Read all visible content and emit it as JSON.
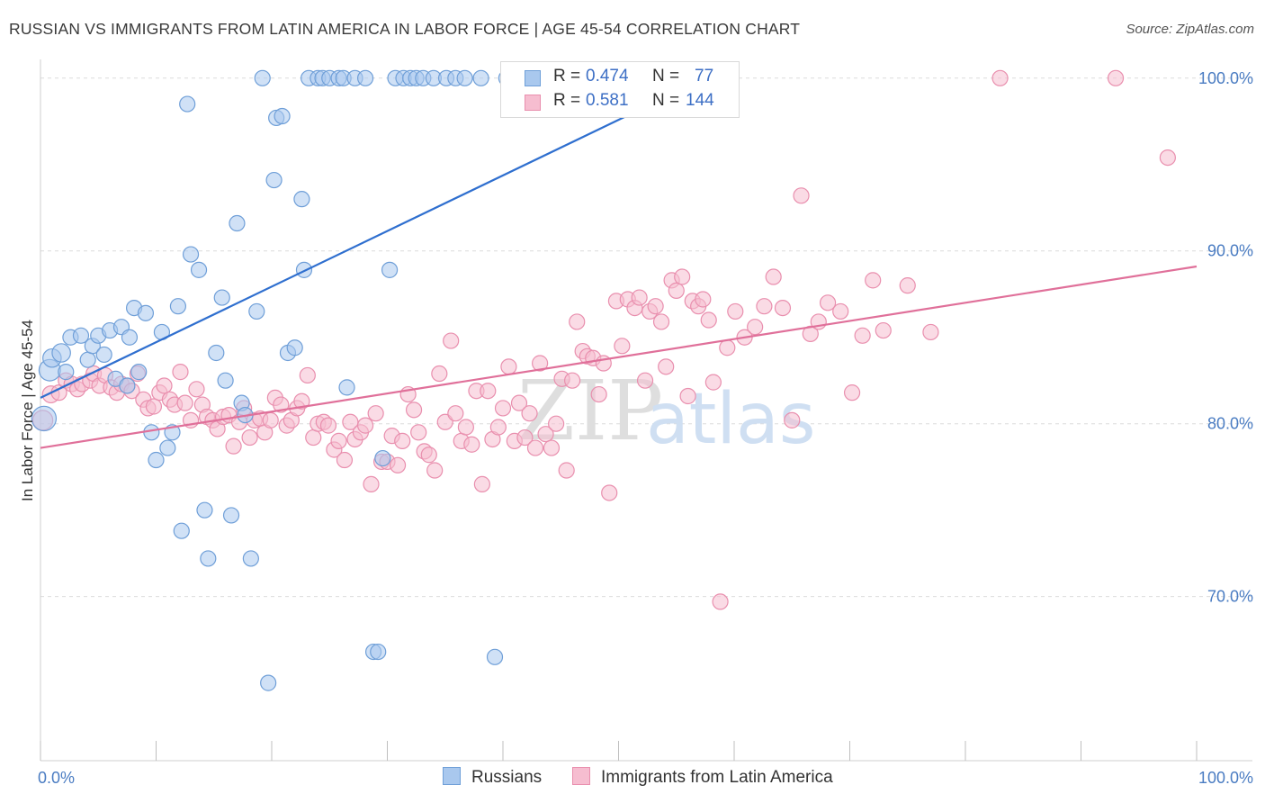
{
  "title": "RUSSIAN VS IMMIGRANTS FROM LATIN AMERICA IN LABOR FORCE | AGE 45-54 CORRELATION CHART",
  "source": "Source: ZipAtlas.com",
  "watermark": {
    "zip": "ZIP",
    "atlas": "atlas"
  },
  "colors": {
    "russians_fill": "#a9c8ee",
    "russians_stroke": "#6f9fd8",
    "russians_line": "#2f6fcf",
    "latin_fill": "#f6bdd0",
    "latin_stroke": "#e98fae",
    "latin_line": "#e0709a",
    "tick_text": "#4a7cc2",
    "grid": "#dcdcdc"
  },
  "legend": {
    "r_label": "R =",
    "n_label": "N =",
    "russians": {
      "r": "0.474",
      "n": "77"
    },
    "latin": {
      "r": "0.581",
      "n": "144"
    }
  },
  "bottom_legend": {
    "russians": "Russians",
    "latin": "Immigrants from Latin America"
  },
  "chart_data": {
    "type": "scatter",
    "ylabel": "In Labor Force | Age 45-54",
    "xlim": [
      0,
      100
    ],
    "ylim": [
      60.5,
      101.5
    ],
    "x_ticks": [
      {
        "value": 0,
        "label": "0.0%"
      },
      {
        "value": 100,
        "label": "100.0%"
      }
    ],
    "x_minor_ticks": [
      0,
      10,
      20,
      30,
      40,
      50,
      60,
      70,
      80,
      90,
      100
    ],
    "y_ticks": [
      {
        "value": 70,
        "label": "70.0%"
      },
      {
        "value": 80,
        "label": "80.0%"
      },
      {
        "value": 90,
        "label": "90.0%"
      },
      {
        "value": 100,
        "label": "100.0%"
      }
    ],
    "grid": true,
    "legend_position": "top-center",
    "series": [
      {
        "name": "Russians",
        "r": 0.474,
        "n": 77,
        "trend": [
          [
            0,
            81.5
          ],
          [
            57.5,
            100.0
          ]
        ],
        "points": [
          [
            0.3,
            80.3,
            1.6
          ],
          [
            0.8,
            83.1,
            1.4
          ],
          [
            1.0,
            83.8,
            1.2
          ],
          [
            1.8,
            84.1,
            1.2
          ],
          [
            2.2,
            83.0,
            1.0
          ],
          [
            2.6,
            85.0,
            1.0
          ],
          [
            3.5,
            85.1,
            1.0
          ],
          [
            4.1,
            83.7,
            1.0
          ],
          [
            4.5,
            84.5,
            1.0
          ],
          [
            5.0,
            85.1,
            1.0
          ],
          [
            5.5,
            84.0,
            1.0
          ],
          [
            6.0,
            85.4,
            1.0
          ],
          [
            6.5,
            82.6,
            1.0
          ],
          [
            7.0,
            85.6,
            1.0
          ],
          [
            7.5,
            82.2,
            1.0
          ],
          [
            7.7,
            85.0,
            1.0
          ],
          [
            8.1,
            86.7,
            1.0
          ],
          [
            8.5,
            83.0,
            1.0
          ],
          [
            9.1,
            86.4,
            1.0
          ],
          [
            9.6,
            79.5,
            1.0
          ],
          [
            10.0,
            77.9,
            1.0
          ],
          [
            10.5,
            85.3,
            1.0
          ],
          [
            11.0,
            78.6,
            1.0
          ],
          [
            11.4,
            79.5,
            1.0
          ],
          [
            11.9,
            86.8,
            1.0
          ],
          [
            12.2,
            73.8,
            1.0
          ],
          [
            12.7,
            98.5,
            1.0
          ],
          [
            13.0,
            89.8,
            1.0
          ],
          [
            13.7,
            88.9,
            1.0
          ],
          [
            14.2,
            75.0,
            1.0
          ],
          [
            14.5,
            72.2,
            1.0
          ],
          [
            15.2,
            84.1,
            1.0
          ],
          [
            15.7,
            87.3,
            1.0
          ],
          [
            16.0,
            82.5,
            1.0
          ],
          [
            16.5,
            74.7,
            1.0
          ],
          [
            17.0,
            91.6,
            1.0
          ],
          [
            17.4,
            81.2,
            1.0
          ],
          [
            17.7,
            80.5,
            1.0
          ],
          [
            18.2,
            72.2,
            1.0
          ],
          [
            18.7,
            86.5,
            1.0
          ],
          [
            19.2,
            100.0,
            1.0
          ],
          [
            19.7,
            65.0,
            1.0
          ],
          [
            20.2,
            94.1,
            1.0
          ],
          [
            20.4,
            97.7,
            1.0
          ],
          [
            20.9,
            97.8,
            1.0
          ],
          [
            21.4,
            84.1,
            1.0
          ],
          [
            22.0,
            84.4,
            1.0
          ],
          [
            22.6,
            93.0,
            1.0
          ],
          [
            22.8,
            88.9,
            1.0
          ],
          [
            23.2,
            100.0,
            1.0
          ],
          [
            24.0,
            100.0,
            1.0
          ],
          [
            24.4,
            100.0,
            1.0
          ],
          [
            25.0,
            100.0,
            1.0
          ],
          [
            25.8,
            100.0,
            1.0
          ],
          [
            26.2,
            100.0,
            1.0
          ],
          [
            26.5,
            82.1,
            1.0
          ],
          [
            27.2,
            100.0,
            1.0
          ],
          [
            28.1,
            100.0,
            1.0
          ],
          [
            28.8,
            66.8,
            1.0
          ],
          [
            29.2,
            66.8,
            1.0
          ],
          [
            29.6,
            78.0,
            1.0
          ],
          [
            30.2,
            88.9,
            1.0
          ],
          [
            30.7,
            100.0,
            1.0
          ],
          [
            31.4,
            100.0,
            1.0
          ],
          [
            32.0,
            100.0,
            1.0
          ],
          [
            32.5,
            100.0,
            1.0
          ],
          [
            33.1,
            100.0,
            1.0
          ],
          [
            34.0,
            100.0,
            1.0
          ],
          [
            35.1,
            100.0,
            1.0
          ],
          [
            35.9,
            100.0,
            1.0
          ],
          [
            36.7,
            100.0,
            1.0
          ],
          [
            38.1,
            100.0,
            1.0
          ],
          [
            39.3,
            66.5,
            1.0
          ],
          [
            40.3,
            100.0,
            1.0
          ],
          [
            41.2,
            100.0,
            1.0
          ],
          [
            42.0,
            100.0,
            1.0
          ],
          [
            51.1,
            100.0,
            1.0
          ]
        ]
      },
      {
        "name": "Immigrants from Latin America",
        "r": 0.581,
        "n": 144,
        "trend": [
          [
            0,
            78.6
          ],
          [
            100,
            89.1
          ]
        ],
        "points": [
          [
            0.2,
            80.2,
            1.3
          ],
          [
            0.9,
            81.7,
            1.1
          ],
          [
            1.6,
            81.8,
            1.0
          ],
          [
            2.2,
            82.5,
            1.0
          ],
          [
            2.7,
            82.3,
            1.0
          ],
          [
            3.2,
            82.0,
            1.0
          ],
          [
            3.6,
            82.3,
            1.0
          ],
          [
            4.3,
            82.5,
            1.0
          ],
          [
            4.6,
            82.9,
            1.0
          ],
          [
            5.1,
            82.2,
            1.0
          ],
          [
            5.6,
            82.8,
            1.0
          ],
          [
            6.1,
            82.1,
            1.0
          ],
          [
            6.6,
            81.8,
            1.0
          ],
          [
            7.0,
            82.3,
            1.0
          ],
          [
            7.5,
            82.2,
            1.0
          ],
          [
            7.9,
            81.9,
            1.0
          ],
          [
            8.4,
            82.9,
            1.0
          ],
          [
            8.9,
            81.4,
            1.0
          ],
          [
            9.3,
            80.9,
            1.0
          ],
          [
            9.8,
            81.0,
            1.0
          ],
          [
            10.3,
            81.8,
            1.0
          ],
          [
            10.7,
            82.2,
            1.0
          ],
          [
            11.2,
            81.4,
            1.0
          ],
          [
            11.6,
            81.1,
            1.0
          ],
          [
            12.1,
            83.0,
            1.0
          ],
          [
            12.5,
            81.2,
            1.0
          ],
          [
            13.0,
            80.2,
            1.0
          ],
          [
            13.5,
            82.0,
            1.0
          ],
          [
            14.0,
            81.1,
            1.0
          ],
          [
            14.4,
            80.4,
            1.0
          ],
          [
            14.9,
            80.2,
            1.0
          ],
          [
            15.3,
            79.7,
            1.0
          ],
          [
            15.8,
            80.4,
            1.0
          ],
          [
            16.3,
            80.5,
            1.0
          ],
          [
            16.7,
            78.7,
            1.0
          ],
          [
            17.2,
            80.1,
            1.0
          ],
          [
            17.6,
            80.9,
            1.0
          ],
          [
            18.1,
            79.2,
            1.0
          ],
          [
            18.5,
            80.2,
            1.0
          ],
          [
            19.0,
            80.3,
            1.0
          ],
          [
            19.4,
            79.5,
            1.0
          ],
          [
            19.9,
            80.2,
            1.0
          ],
          [
            20.3,
            81.5,
            1.0
          ],
          [
            20.8,
            81.1,
            1.0
          ],
          [
            21.3,
            79.9,
            1.0
          ],
          [
            21.7,
            80.2,
            1.0
          ],
          [
            22.2,
            80.9,
            1.0
          ],
          [
            22.6,
            81.3,
            1.0
          ],
          [
            23.1,
            82.8,
            1.0
          ],
          [
            23.6,
            79.2,
            1.0
          ],
          [
            24.0,
            80.0,
            1.0
          ],
          [
            24.5,
            80.1,
            1.0
          ],
          [
            24.9,
            79.9,
            1.0
          ],
          [
            25.4,
            78.5,
            1.0
          ],
          [
            25.8,
            79.0,
            1.0
          ],
          [
            26.3,
            77.9,
            1.0
          ],
          [
            26.8,
            80.1,
            1.0
          ],
          [
            27.2,
            79.1,
            1.0
          ],
          [
            27.7,
            79.5,
            1.0
          ],
          [
            28.1,
            79.9,
            1.0
          ],
          [
            28.6,
            76.5,
            1.0
          ],
          [
            29.0,
            80.6,
            1.0
          ],
          [
            29.5,
            77.8,
            1.0
          ],
          [
            30.0,
            77.8,
            1.0
          ],
          [
            30.4,
            79.3,
            1.0
          ],
          [
            30.9,
            77.6,
            1.0
          ],
          [
            31.3,
            79.0,
            1.0
          ],
          [
            31.8,
            81.7,
            1.0
          ],
          [
            32.3,
            80.8,
            1.0
          ],
          [
            32.7,
            79.5,
            1.0
          ],
          [
            33.2,
            78.4,
            1.0
          ],
          [
            33.6,
            78.2,
            1.0
          ],
          [
            34.1,
            77.3,
            1.0
          ],
          [
            34.5,
            82.9,
            1.0
          ],
          [
            35.0,
            80.1,
            1.0
          ],
          [
            35.5,
            84.8,
            1.0
          ],
          [
            35.9,
            80.6,
            1.0
          ],
          [
            36.4,
            79.0,
            1.0
          ],
          [
            36.8,
            79.8,
            1.0
          ],
          [
            37.3,
            78.8,
            1.0
          ],
          [
            37.7,
            81.9,
            1.0
          ],
          [
            38.2,
            76.5,
            1.0
          ],
          [
            38.7,
            81.9,
            1.0
          ],
          [
            39.1,
            79.1,
            1.0
          ],
          [
            39.6,
            79.8,
            1.0
          ],
          [
            40.0,
            80.9,
            1.0
          ],
          [
            40.5,
            83.3,
            1.0
          ],
          [
            41.0,
            79.0,
            1.0
          ],
          [
            41.4,
            81.2,
            1.0
          ],
          [
            41.9,
            79.2,
            1.0
          ],
          [
            42.3,
            80.6,
            1.0
          ],
          [
            42.8,
            78.6,
            1.0
          ],
          [
            43.2,
            83.5,
            1.0
          ],
          [
            43.7,
            79.4,
            1.0
          ],
          [
            44.2,
            78.6,
            1.0
          ],
          [
            44.6,
            80.0,
            1.0
          ],
          [
            45.1,
            82.6,
            1.0
          ],
          [
            45.5,
            77.3,
            1.0
          ],
          [
            46.0,
            82.5,
            1.0
          ],
          [
            46.4,
            85.9,
            1.0
          ],
          [
            46.9,
            84.2,
            1.0
          ],
          [
            47.3,
            83.9,
            1.0
          ],
          [
            47.8,
            83.8,
            1.0
          ],
          [
            48.3,
            81.7,
            1.0
          ],
          [
            48.7,
            83.5,
            1.0
          ],
          [
            49.2,
            76.0,
            1.0
          ],
          [
            49.8,
            87.1,
            1.0
          ],
          [
            50.3,
            84.5,
            1.0
          ],
          [
            50.8,
            87.2,
            1.0
          ],
          [
            51.4,
            86.7,
            1.0
          ],
          [
            51.8,
            87.3,
            1.0
          ],
          [
            52.3,
            82.5,
            1.0
          ],
          [
            52.7,
            86.5,
            1.0
          ],
          [
            53.2,
            86.8,
            1.0
          ],
          [
            53.7,
            85.9,
            1.0
          ],
          [
            54.1,
            83.3,
            1.0
          ],
          [
            54.6,
            88.3,
            1.0
          ],
          [
            55.0,
            87.7,
            1.0
          ],
          [
            55.5,
            88.5,
            1.0
          ],
          [
            56.0,
            81.6,
            1.0
          ],
          [
            56.4,
            87.1,
            1.0
          ],
          [
            56.9,
            86.8,
            1.0
          ],
          [
            57.3,
            87.2,
            1.0
          ],
          [
            57.8,
            86.0,
            1.0
          ],
          [
            58.2,
            82.4,
            1.0
          ],
          [
            58.8,
            69.7,
            1.0
          ],
          [
            59.4,
            84.4,
            1.0
          ],
          [
            60.1,
            86.5,
            1.0
          ],
          [
            60.9,
            85.0,
            1.0
          ],
          [
            61.8,
            85.6,
            1.0
          ],
          [
            62.6,
            86.8,
            1.0
          ],
          [
            63.4,
            88.5,
            1.0
          ],
          [
            64.2,
            86.7,
            1.0
          ],
          [
            65.0,
            80.2,
            1.0
          ],
          [
            65.8,
            93.2,
            1.0
          ],
          [
            66.6,
            85.2,
            1.0
          ],
          [
            67.3,
            85.9,
            1.0
          ],
          [
            68.1,
            87.0,
            1.0
          ],
          [
            69.2,
            86.5,
            1.0
          ],
          [
            70.2,
            81.8,
            1.0
          ],
          [
            71.1,
            85.1,
            1.0
          ],
          [
            72.0,
            88.3,
            1.0
          ],
          [
            72.9,
            85.4,
            1.0
          ],
          [
            75.0,
            88.0,
            1.0
          ],
          [
            77.0,
            85.3,
            1.0
          ],
          [
            83.0,
            100.0,
            1.0
          ],
          [
            93.0,
            100.0,
            1.0
          ],
          [
            97.5,
            95.4,
            1.0
          ]
        ]
      }
    ]
  }
}
